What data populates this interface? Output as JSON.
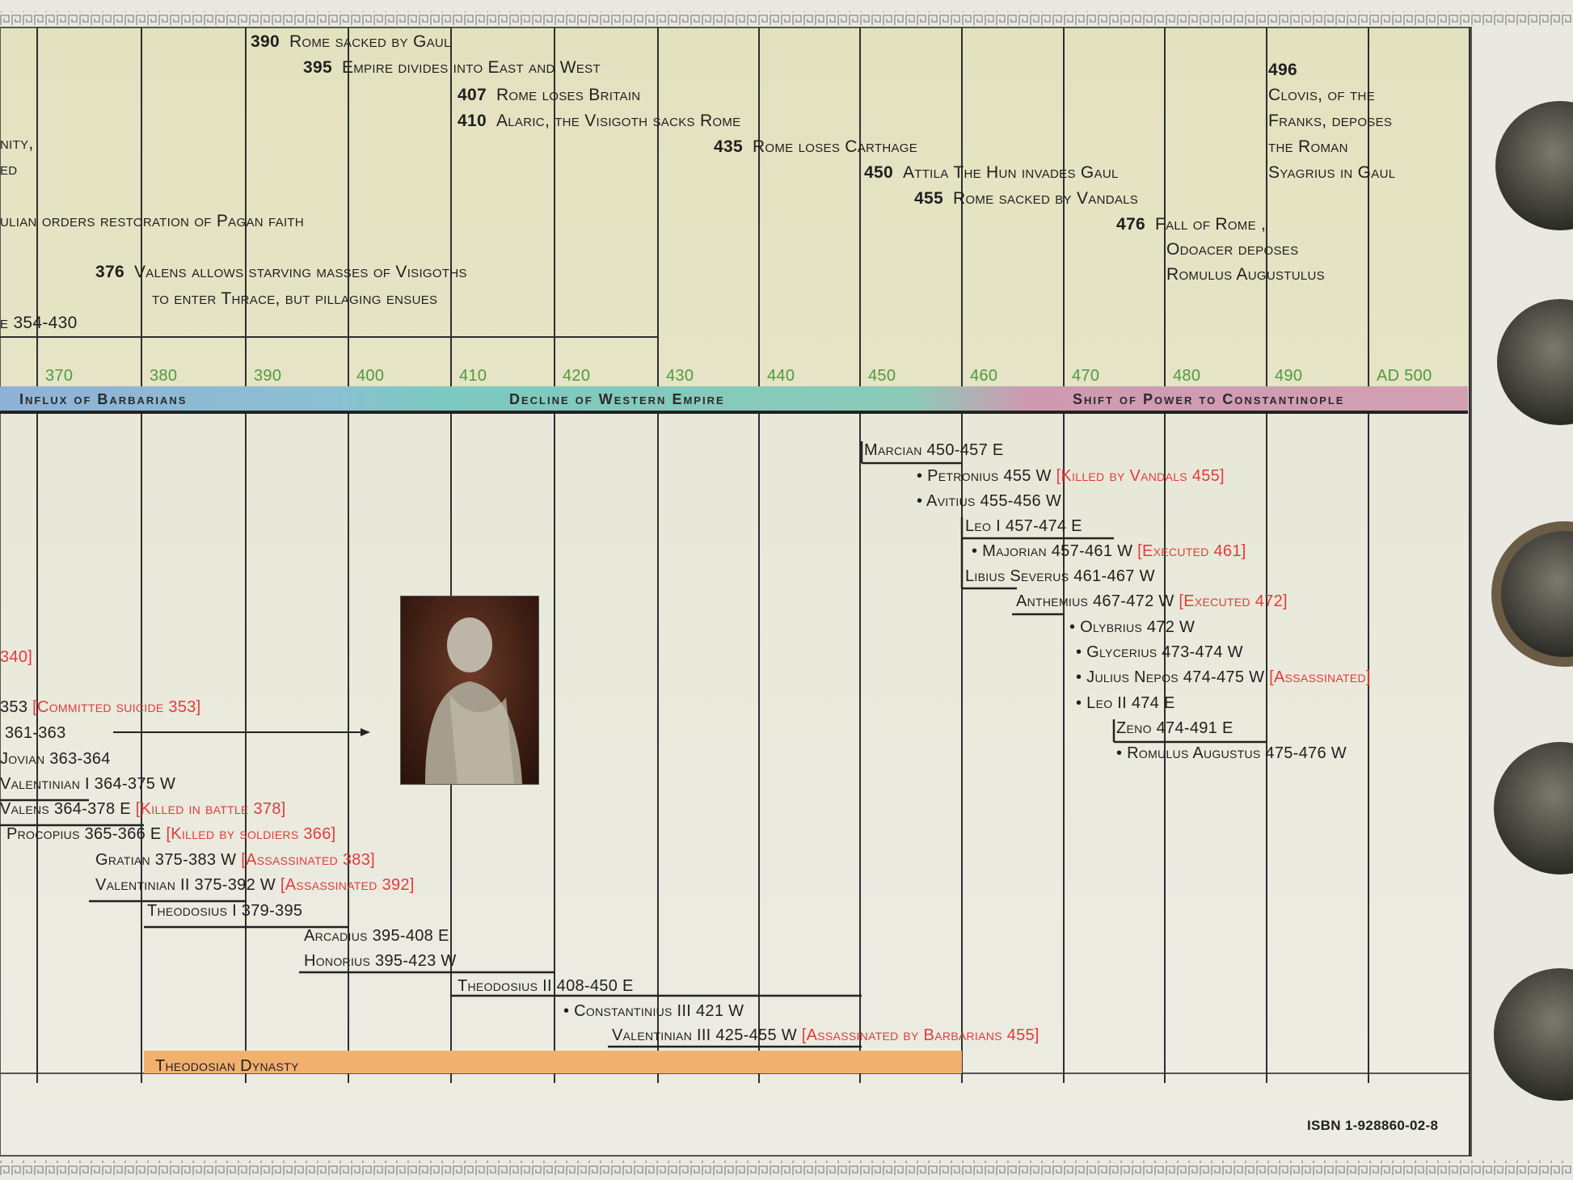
{
  "upper_events": [
    {
      "year": "390",
      "text": "Rome sacked by Gaul"
    },
    {
      "year": "395",
      "text": "Empire divides into East and West"
    },
    {
      "year": "407",
      "text": "Rome loses Britain"
    },
    {
      "year": "410",
      "text": "Alaric, the Visigoth sacks Rome"
    },
    {
      "year": "435",
      "text": "Rome loses Carthage"
    },
    {
      "year": "450",
      "text": "Attila The Hun invades Gaul"
    },
    {
      "year": "455",
      "text": "Rome sacked by Vandals"
    },
    {
      "year": "476",
      "text": "Fall of Rome ,"
    },
    {
      "year": "",
      "text": "Odoacer deposes"
    },
    {
      "year": "",
      "text": "Romulus Augustulus"
    },
    {
      "year": "496",
      "text": ""
    },
    {
      "year": "",
      "text": "Clovis, of the"
    },
    {
      "year": "",
      "text": "Franks, deposes"
    },
    {
      "year": "",
      "text": "the Roman"
    },
    {
      "year": "",
      "text": "Syagrius in Gaul"
    },
    {
      "year": "",
      "text": "nity,"
    },
    {
      "year": "",
      "text": "ed"
    },
    {
      "year": "",
      "text": "ulian orders restoration of Pagan faith"
    },
    {
      "year": "376",
      "text": "Valens allows starving masses of Visigoths"
    },
    {
      "year": "",
      "text": "to enter Thrace, but pillaging ensues"
    },
    {
      "year": "",
      "text": "e 354-430"
    }
  ],
  "decade_ticks": [
    "370",
    "380",
    "390",
    "400",
    "410",
    "420",
    "430",
    "440",
    "450",
    "460",
    "470",
    "480",
    "490",
    "AD 500"
  ],
  "period_bands": [
    {
      "label": "Influx of Barbarians",
      "color": "#8fb2d6"
    },
    {
      "label": "Decline of Western Empire",
      "color": "#7cc9c0"
    },
    {
      "label": "Shift of Power to Constantinople",
      "color": "#cf9ab0"
    }
  ],
  "rulers": [
    {
      "text": "Marcian 450-457 E",
      "note": ""
    },
    {
      "text": "• Petronius 455 W",
      "note": "[Killed by Vandals 455]"
    },
    {
      "text": "• Avitius 455-456 W",
      "note": ""
    },
    {
      "text": "Leo I 457-474 E",
      "note": ""
    },
    {
      "text": "• Majorian 457-461 W",
      "note": "[Executed 461]"
    },
    {
      "text": "Libius Severus 461-467 W",
      "note": ""
    },
    {
      "text": "Anthemius 467-472 W",
      "note": "[Executed 472]"
    },
    {
      "text": "• Olybrius 472 W",
      "note": ""
    },
    {
      "text": "• Glycerius 473-474 W",
      "note": ""
    },
    {
      "text": "• Julius Nepos 474-475 W",
      "note": "[Assassinated]"
    },
    {
      "text": "• Leo II 474 E",
      "note": ""
    },
    {
      "text": "Zeno 474-491 E",
      "note": ""
    },
    {
      "text": "• Romulus Augustus 475-476 W",
      "note": ""
    },
    {
      "text": "",
      "note": "340]"
    },
    {
      "text": "353",
      "note": "[Committed suicide 353]"
    },
    {
      "text": "361-363",
      "note": ""
    },
    {
      "text": "Jovian 363-364",
      "note": ""
    },
    {
      "text": "Valentinian I 364-375 W",
      "note": ""
    },
    {
      "text": "Valens 364-378 E",
      "note": "[Killed in battle 378]"
    },
    {
      "text": "Procopius 365-366 E",
      "note": "[Killed by soldiers 366]"
    },
    {
      "text": "Gratian 375-383 W",
      "note": "[Assassinated 383]"
    },
    {
      "text": "Valentinian II 375-392 W",
      "note": "[Assassinated 392]"
    },
    {
      "text": "Theodosius I 379-395",
      "note": ""
    },
    {
      "text": "Arcadius 395-408 E",
      "note": ""
    },
    {
      "text": "Honorius 395-423 W",
      "note": ""
    },
    {
      "text": "Theodosius II 408-450 E",
      "note": ""
    },
    {
      "text": "• Constantinius III 421 W",
      "note": ""
    },
    {
      "text": "Valentinian III 425-455 W",
      "note": "[Assassinated by Barbarians 455]"
    }
  ],
  "dynasty": {
    "label": "Theodosian Dynasty",
    "color": "#f2b06e"
  },
  "isbn": "ISBN 1-928860-02-8",
  "colors": {
    "panel": "#e7e6c5",
    "panel_lower": "#ecece1",
    "red_note": "#e23b3b",
    "tick_green": "#4f9a3e"
  }
}
